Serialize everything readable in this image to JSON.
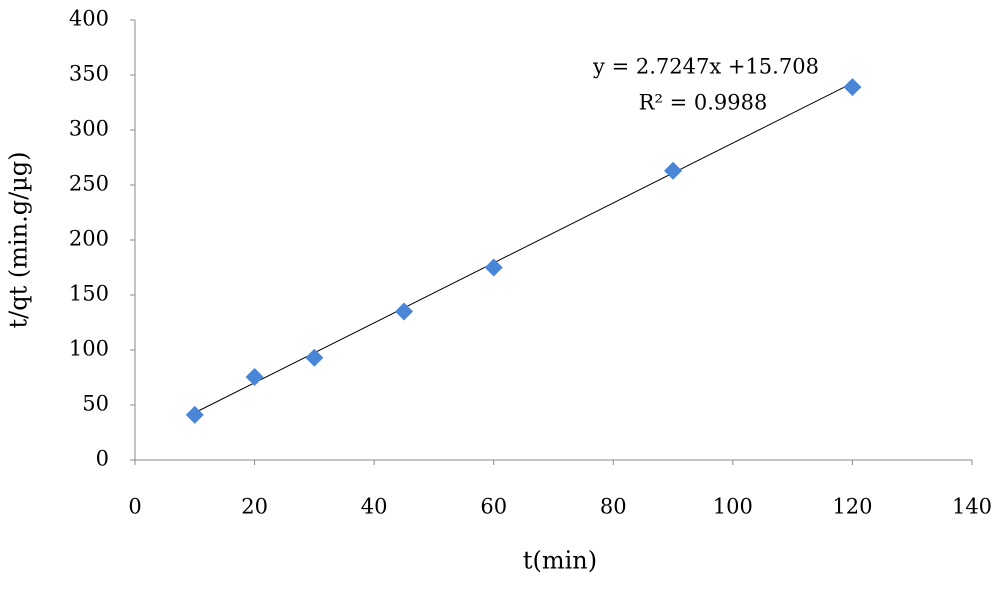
{
  "chart_data": {
    "type": "scatter",
    "x_label": "t(min)",
    "y_label": "t/qt (min.g/µg)",
    "series": [
      {
        "color": "#4a86d8",
        "x": [
          10,
          20,
          30,
          45,
          60,
          90,
          120
        ],
        "values": [
          41,
          75.5,
          93,
          135,
          175,
          263,
          339
        ]
      }
    ],
    "trendline": {
      "slope": 2.7247,
      "intercept": 15.708,
      "equation": "y = 2.7247x +15.708",
      "r2_label": "R² = 0.9988",
      "color": "#000000"
    },
    "xlim": [
      0,
      140
    ],
    "xticks": [
      0,
      20,
      40,
      60,
      80,
      100,
      120,
      140
    ],
    "ylim": [
      0,
      400
    ],
    "yticks": [
      0,
      50,
      100,
      150,
      200,
      250,
      300,
      350,
      400
    ],
    "grid": false
  }
}
